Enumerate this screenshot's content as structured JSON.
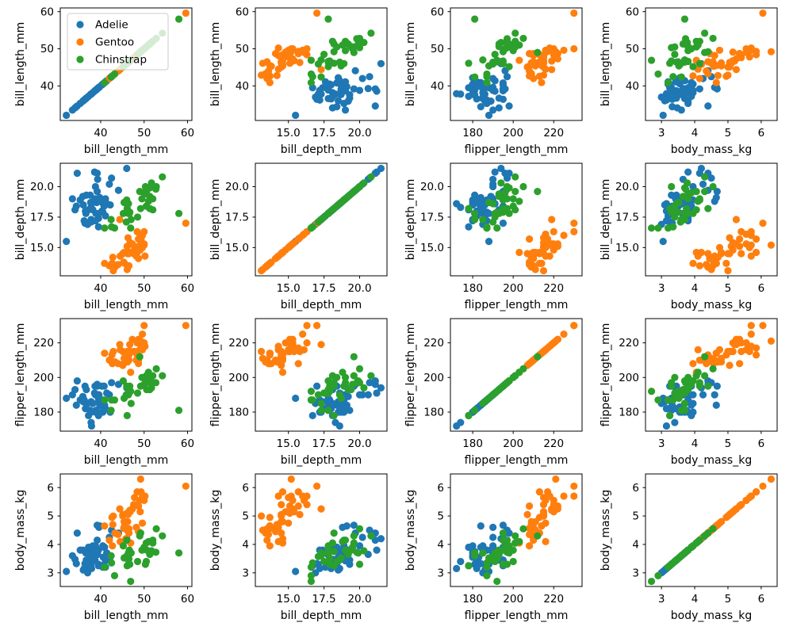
{
  "figure": {
    "background": "#ffffff",
    "kind": "4x4 scatterplot matrix (pairplot), no gridlines, black spines"
  },
  "chart_data": {
    "type": "scatter",
    "matrix": "pairplot 4x4: panel(row r, col c) plots variables[c] on x vs variables[r] on y; diagonal panels are identity lines of points",
    "variables": [
      "bill_length_mm",
      "bill_depth_mm",
      "flipper_length_mm",
      "body_mass_kg"
    ],
    "axes": {
      "bill_length_mm": {
        "range": [
          30.7,
          61.0
        ],
        "ticks": [
          40,
          50,
          60
        ],
        "tick_labels": [
          "40",
          "50",
          "60"
        ]
      },
      "bill_depth_mm": {
        "range": [
          12.68,
          21.92
        ],
        "ticks": [
          15.0,
          17.5,
          20.0
        ],
        "tick_labels": [
          "15.0",
          "17.5",
          "20.0"
        ]
      },
      "flipper_length_mm": {
        "range": [
          169.0,
          234.0
        ],
        "ticks": [
          180,
          200,
          220
        ],
        "tick_labels": [
          "180",
          "200",
          "220"
        ]
      },
      "body_mass_kg": {
        "range": [
          2.52,
          6.48
        ],
        "ticks": [
          3,
          4,
          5,
          6
        ],
        "tick_labels": [
          "3",
          "4",
          "5",
          "6"
        ]
      }
    },
    "grid": false,
    "legend": {
      "position": "upper-left of subplot (0,0)",
      "entries": [
        {
          "label": "Adelie",
          "color": "#1f77b4"
        },
        {
          "label": "Gentoo",
          "color": "#ff7f0e"
        },
        {
          "label": "Chinstrap",
          "color": "#2ca02c"
        }
      ]
    },
    "point_columns": [
      "bill_length_mm",
      "bill_depth_mm",
      "flipper_length_mm",
      "body_mass_kg"
    ],
    "series": [
      {
        "name": "Adelie",
        "color": "#1f77b4",
        "points": [
          [
            39.1,
            18.7,
            181,
            3.75
          ],
          [
            39.5,
            17.4,
            186,
            3.8
          ],
          [
            40.3,
            18.0,
            195,
            3.25
          ],
          [
            36.7,
            19.3,
            193,
            3.45
          ],
          [
            39.3,
            20.6,
            190,
            3.65
          ],
          [
            38.9,
            17.8,
            181,
            3.625
          ],
          [
            39.2,
            19.6,
            195,
            4.675
          ],
          [
            34.1,
            18.1,
            193,
            3.475
          ],
          [
            42.0,
            20.2,
            190,
            4.25
          ],
          [
            37.8,
            17.1,
            186,
            3.3
          ],
          [
            37.8,
            17.3,
            180,
            3.7
          ],
          [
            41.1,
            17.6,
            182,
            3.2
          ],
          [
            38.6,
            21.2,
            191,
            3.8
          ],
          [
            34.6,
            21.1,
            198,
            4.4
          ],
          [
            36.6,
            17.8,
            185,
            3.7
          ],
          [
            38.7,
            19.0,
            195,
            3.45
          ],
          [
            42.5,
            20.7,
            197,
            4.5
          ],
          [
            34.4,
            18.4,
            184,
            3.325
          ],
          [
            46.0,
            21.5,
            194,
            4.2
          ],
          [
            37.8,
            18.3,
            174,
            3.4
          ],
          [
            37.7,
            18.7,
            180,
            3.6
          ],
          [
            35.9,
            19.2,
            189,
            3.8
          ],
          [
            38.2,
            18.1,
            185,
            3.95
          ],
          [
            38.8,
            17.2,
            180,
            3.8
          ],
          [
            35.3,
            18.9,
            187,
            3.8
          ],
          [
            40.6,
            18.6,
            183,
            3.55
          ],
          [
            40.5,
            17.9,
            187,
            3.2
          ],
          [
            37.9,
            18.6,
            172,
            3.15
          ],
          [
            40.5,
            18.9,
            180,
            3.95
          ],
          [
            39.5,
            16.7,
            178,
            3.25
          ],
          [
            37.2,
            18.1,
            178,
            3.9
          ],
          [
            39.5,
            17.8,
            188,
            3.3
          ],
          [
            40.9,
            18.9,
            184,
            3.9
          ],
          [
            36.4,
            17.0,
            195,
            3.325
          ],
          [
            39.2,
            21.1,
            196,
            4.15
          ],
          [
            38.8,
            20.0,
            190,
            3.95
          ],
          [
            42.2,
            18.5,
            180,
            3.55
          ],
          [
            37.6,
            19.3,
            181,
            3.3
          ],
          [
            39.8,
            19.1,
            184,
            4.65
          ],
          [
            36.5,
            18.0,
            182,
            3.15
          ],
          [
            40.8,
            18.4,
            195,
            3.9
          ],
          [
            36.0,
            18.5,
            186,
            3.1
          ],
          [
            44.1,
            19.7,
            196,
            4.4
          ],
          [
            37.0,
            16.9,
            185,
            3.0
          ],
          [
            39.6,
            18.8,
            190,
            4.6
          ],
          [
            41.1,
            19.0,
            182,
            3.425
          ],
          [
            36.2,
            17.2,
            187,
            3.15
          ],
          [
            41.4,
            18.6,
            191,
            3.7
          ],
          [
            32.1,
            15.5,
            188,
            3.05
          ],
          [
            33.5,
            19.0,
            190,
            3.6
          ]
        ]
      },
      {
        "name": "Gentoo",
        "color": "#ff7f0e",
        "points": [
          [
            46.1,
            13.2,
            211,
            4.5
          ],
          [
            50.0,
            16.3,
            230,
            5.7
          ],
          [
            48.7,
            14.1,
            210,
            4.45
          ],
          [
            50.0,
            15.2,
            218,
            5.7
          ],
          [
            47.6,
            14.5,
            215,
            5.4
          ],
          [
            46.5,
            13.5,
            210,
            4.55
          ],
          [
            45.4,
            14.6,
            211,
            4.8
          ],
          [
            46.7,
            15.3,
            219,
            5.2
          ],
          [
            43.3,
            13.4,
            209,
            4.4
          ],
          [
            46.8,
            15.4,
            215,
            5.15
          ],
          [
            40.9,
            13.7,
            214,
            4.65
          ],
          [
            49.0,
            16.1,
            216,
            5.55
          ],
          [
            45.5,
            13.7,
            214,
            4.65
          ],
          [
            48.4,
            14.6,
            213,
            5.85
          ],
          [
            45.8,
            14.6,
            210,
            4.2
          ],
          [
            49.3,
            15.7,
            217,
            5.85
          ],
          [
            42.0,
            13.5,
            210,
            4.15
          ],
          [
            49.2,
            15.2,
            221,
            6.3
          ],
          [
            46.2,
            14.5,
            209,
            4.8
          ],
          [
            48.7,
            15.1,
            222,
            5.35
          ],
          [
            50.2,
            14.3,
            218,
            5.7
          ],
          [
            45.1,
            14.5,
            215,
            5.0
          ],
          [
            46.5,
            14.5,
            213,
            4.4
          ],
          [
            46.3,
            15.8,
            215,
            5.05
          ],
          [
            42.9,
            13.1,
            215,
            5.0
          ],
          [
            46.1,
            15.1,
            215,
            5.1
          ],
          [
            44.5,
            14.3,
            216,
            4.1
          ],
          [
            47.8,
            15.0,
            215,
            5.65
          ],
          [
            48.2,
            14.3,
            210,
            4.6
          ],
          [
            50.0,
            15.3,
            220,
            5.55
          ],
          [
            47.3,
            15.3,
            222,
            5.25
          ],
          [
            42.8,
            14.2,
            209,
            4.7
          ],
          [
            45.1,
            14.5,
            207,
            5.05
          ],
          [
            59.6,
            17.0,
            230,
            6.05
          ],
          [
            49.1,
            14.8,
            220,
            5.15
          ],
          [
            48.4,
            16.3,
            220,
            5.4
          ],
          [
            42.6,
            13.7,
            213,
            4.95
          ],
          [
            44.4,
            17.3,
            219,
            5.25
          ],
          [
            44.0,
            13.6,
            208,
            4.35
          ],
          [
            48.7,
            15.7,
            208,
            5.35
          ],
          [
            42.7,
            13.7,
            208,
            3.95
          ],
          [
            49.6,
            16.0,
            225,
            5.7
          ],
          [
            45.3,
            13.8,
            208,
            4.57
          ],
          [
            49.6,
            15.0,
            216,
            4.75
          ],
          [
            46.9,
            14.6,
            203,
            4.05
          ]
        ]
      },
      {
        "name": "Chinstrap",
        "color": "#2ca02c",
        "points": [
          [
            46.5,
            17.9,
            192,
            3.5
          ],
          [
            50.0,
            19.5,
            196,
            3.9
          ],
          [
            51.3,
            19.2,
            193,
            3.65
          ],
          [
            45.4,
            18.7,
            188,
            3.525
          ],
          [
            52.7,
            19.8,
            197,
            3.725
          ],
          [
            45.2,
            17.8,
            198,
            3.95
          ],
          [
            46.1,
            18.2,
            178,
            3.25
          ],
          [
            51.3,
            18.2,
            197,
            3.75
          ],
          [
            46.0,
            18.9,
            195,
            4.15
          ],
          [
            51.3,
            19.9,
            198,
            3.7
          ],
          [
            46.6,
            17.8,
            193,
            3.8
          ],
          [
            51.7,
            20.3,
            194,
            3.775
          ],
          [
            47.0,
            17.3,
            185,
            3.7
          ],
          [
            52.0,
            18.1,
            201,
            4.05
          ],
          [
            45.9,
            17.1,
            190,
            3.575
          ],
          [
            50.5,
            19.6,
            201,
            4.05
          ],
          [
            50.3,
            20.0,
            197,
            3.3
          ],
          [
            58.0,
            17.8,
            181,
            3.7
          ],
          [
            46.4,
            18.6,
            190,
            3.45
          ],
          [
            49.2,
            18.2,
            195,
            4.4
          ],
          [
            42.4,
            17.3,
            181,
            3.6
          ],
          [
            48.5,
            17.5,
            191,
            3.4
          ],
          [
            43.2,
            16.6,
            187,
            2.9
          ],
          [
            50.6,
            19.4,
            193,
            3.8
          ],
          [
            46.7,
            17.9,
            195,
            3.3
          ],
          [
            52.0,
            19.0,
            197,
            4.15
          ],
          [
            50.5,
            18.4,
            200,
            3.4
          ],
          [
            49.5,
            19.0,
            200,
            3.8
          ],
          [
            46.4,
            17.8,
            191,
            3.7
          ],
          [
            52.8,
            20.0,
            205,
            4.55
          ],
          [
            40.9,
            16.6,
            187,
            3.2
          ],
          [
            54.2,
            20.8,
            201,
            4.3
          ],
          [
            42.5,
            16.7,
            187,
            3.35
          ],
          [
            51.0,
            18.8,
            203,
            4.1
          ],
          [
            46.9,
            16.6,
            192,
            2.7
          ],
          [
            49.0,
            19.6,
            212,
            4.3
          ]
        ]
      }
    ]
  }
}
